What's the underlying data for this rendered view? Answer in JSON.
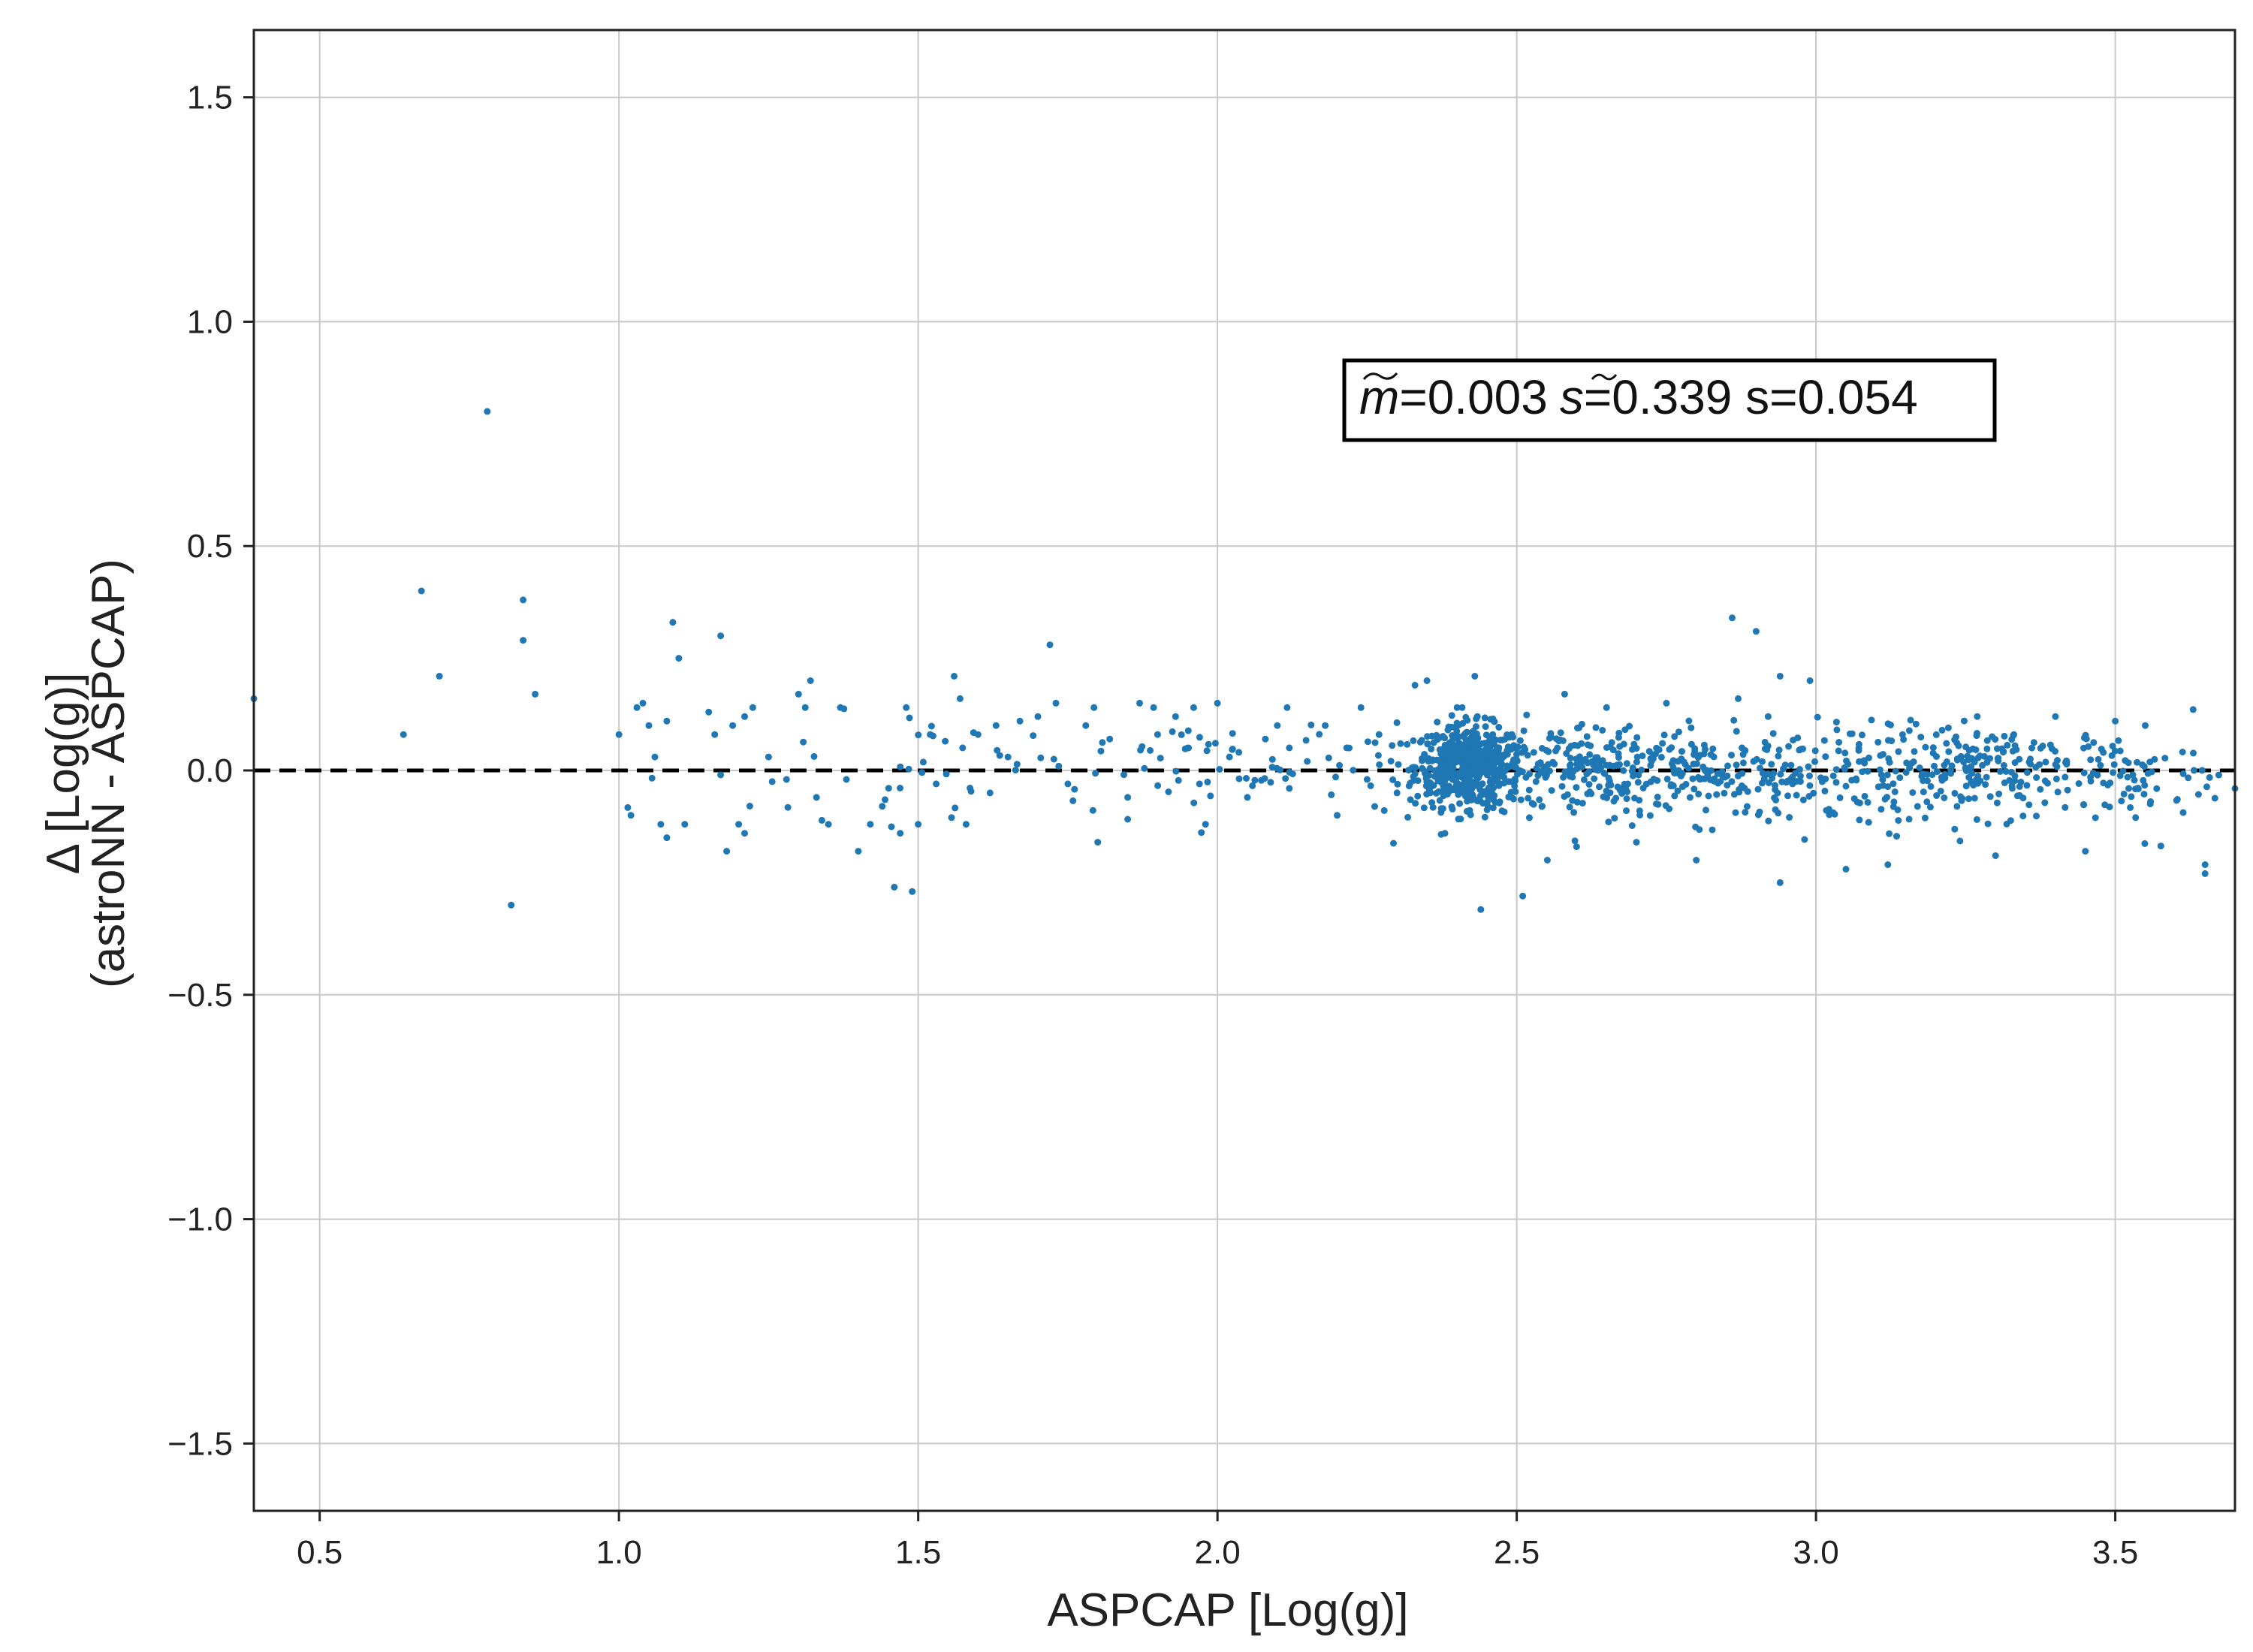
{
  "chart_data": {
    "type": "scatter",
    "xlabel": "ASPCAP [Log(g)]",
    "ylabel_line1": "Δ [Log(g)]",
    "ylabel_line2": "(astroNN - ASPCAP)",
    "xlim": [
      0.39,
      3.7
    ],
    "ylim": [
      -1.65,
      1.65
    ],
    "x_ticks": [
      0.5,
      1.0,
      1.5,
      2.0,
      2.5,
      3.0,
      3.5
    ],
    "x_tick_labels": [
      "0.5",
      "1.0",
      "1.5",
      "2.0",
      "2.5",
      "3.0",
      "3.5"
    ],
    "y_ticks": [
      1.5,
      1.0,
      0.5,
      0.0,
      -0.5,
      -1.0,
      -1.5
    ],
    "y_tick_labels": [
      "1.5",
      "1.0",
      "0.5",
      "0.0",
      "−0.5",
      "−1.0",
      "−1.5"
    ],
    "grid": true,
    "reference_line": {
      "y": 0.0,
      "style": "dashed",
      "color": "#000000"
    },
    "stats_box": {
      "m_symbol": "m",
      "m_value": "=0.003",
      "s_tilde_symbol": "s",
      "s_tilde_value": "=0.339",
      "s_text": " s=0.054"
    },
    "marker_color": "#1f77b4",
    "points": [
      [
        0.39,
        0.16
      ],
      [
        0.64,
        0.08
      ],
      [
        0.67,
        0.4
      ],
      [
        0.7,
        0.21
      ],
      [
        0.78,
        0.8
      ],
      [
        0.82,
        -0.3
      ],
      [
        0.84,
        0.38
      ],
      [
        0.84,
        0.29
      ],
      [
        0.86,
        0.17
      ],
      [
        1.0,
        0.08
      ],
      [
        1.02,
        -0.1
      ],
      [
        1.03,
        0.14
      ],
      [
        1.04,
        0.15
      ],
      [
        1.05,
        0.1
      ],
      [
        1.06,
        0.03
      ],
      [
        1.07,
        -0.12
      ],
      [
        1.08,
        0.11
      ],
      [
        1.08,
        -0.15
      ],
      [
        1.09,
        0.33
      ],
      [
        1.1,
        0.25
      ],
      [
        1.11,
        -0.12
      ],
      [
        1.15,
        0.13
      ],
      [
        1.16,
        0.08
      ],
      [
        1.17,
        0.3
      ],
      [
        1.17,
        -0.01
      ],
      [
        1.18,
        -0.18
      ],
      [
        1.19,
        0.1
      ],
      [
        1.2,
        -0.12
      ],
      [
        1.21,
        0.12
      ],
      [
        1.21,
        -0.14
      ],
      [
        1.25,
        0.03
      ],
      [
        1.28,
        -0.02
      ],
      [
        1.3,
        0.17
      ],
      [
        1.32,
        0.2
      ],
      [
        1.33,
        -0.06
      ],
      [
        1.35,
        -0.12
      ],
      [
        1.37,
        0.14
      ],
      [
        1.38,
        -0.02
      ],
      [
        1.4,
        -0.18
      ],
      [
        1.42,
        -0.12
      ],
      [
        1.44,
        -0.08
      ],
      [
        1.46,
        -0.26
      ],
      [
        1.47,
        -0.14
      ],
      [
        1.48,
        0.14
      ],
      [
        1.49,
        -0.27
      ],
      [
        1.5,
        -0.12
      ],
      [
        1.52,
        0.08
      ],
      [
        1.53,
        -0.03
      ],
      [
        1.56,
        0.21
      ],
      [
        1.57,
        0.16
      ],
      [
        1.58,
        -0.12
      ],
      [
        1.6,
        0.08
      ],
      [
        1.62,
        -0.05
      ],
      [
        1.63,
        0.1
      ],
      [
        1.65,
        0.03
      ],
      [
        1.67,
        0.11
      ],
      [
        1.7,
        0.12
      ],
      [
        1.72,
        0.28
      ],
      [
        1.73,
        0.15
      ],
      [
        1.75,
        -0.03
      ],
      [
        1.78,
        0.1
      ],
      [
        1.8,
        -0.16
      ],
      [
        1.82,
        0.07
      ],
      [
        1.85,
        -0.06
      ],
      [
        1.87,
        0.15
      ],
      [
        1.9,
        0.08
      ],
      [
        1.93,
        0.12
      ],
      [
        1.95,
        0.05
      ],
      [
        1.97,
        -0.03
      ],
      [
        1.98,
        -0.12
      ],
      [
        2.0,
        0.15
      ],
      [
        2.02,
        0.03
      ],
      [
        2.05,
        -0.06
      ],
      [
        2.08,
        0.07
      ],
      [
        2.1,
        0.1
      ],
      [
        2.12,
        -0.04
      ],
      [
        2.15,
        0.02
      ],
      [
        2.18,
        0.1
      ],
      [
        2.2,
        -0.1
      ],
      [
        2.22,
        0.05
      ],
      [
        2.25,
        -0.02
      ],
      [
        2.27,
        0.08
      ],
      [
        2.3,
        -0.05
      ],
      [
        2.33,
        0.19
      ],
      [
        2.35,
        0.2
      ],
      [
        2.38,
        -0.14
      ],
      [
        2.44,
        -0.31
      ],
      [
        2.43,
        0.21
      ],
      [
        2.51,
        -0.28
      ],
      [
        2.58,
        0.17
      ],
      [
        2.6,
        -0.17
      ],
      [
        2.65,
        0.14
      ],
      [
        2.7,
        -0.16
      ],
      [
        2.75,
        0.15
      ],
      [
        2.8,
        -0.2
      ],
      [
        2.86,
        0.34
      ],
      [
        2.87,
        0.16
      ],
      [
        2.9,
        0.31
      ],
      [
        2.92,
        0.12
      ],
      [
        2.94,
        0.21
      ],
      [
        2.99,
        0.2
      ],
      [
        2.94,
        -0.25
      ],
      [
        3.05,
        -0.22
      ],
      [
        3.12,
        -0.21
      ],
      [
        3.3,
        -0.19
      ],
      [
        3.45,
        -0.18
      ],
      [
        3.65,
        -0.23
      ],
      [
        3.65,
        -0.21
      ],
      [
        3.5,
        0.11
      ],
      [
        3.55,
        0.1
      ],
      [
        3.4,
        0.12
      ]
    ],
    "clusters": [
      {
        "cx": 2.42,
        "cy": 0.01,
        "sx": 0.045,
        "sy": 0.045,
        "n": 520
      },
      {
        "cx": 2.62,
        "cy": 0.0,
        "sx": 0.12,
        "sy": 0.055,
        "n": 230
      },
      {
        "cx": 2.9,
        "cy": -0.01,
        "sx": 0.16,
        "sy": 0.055,
        "n": 230
      },
      {
        "cx": 3.3,
        "cy": 0.0,
        "sx": 0.13,
        "sy": 0.05,
        "n": 230
      },
      {
        "cx": 3.55,
        "cy": -0.02,
        "sx": 0.07,
        "sy": 0.06,
        "n": 45
      },
      {
        "cx": 2.05,
        "cy": 0.0,
        "sx": 0.22,
        "sy": 0.065,
        "n": 80
      },
      {
        "cx": 1.55,
        "cy": 0.0,
        "sx": 0.22,
        "sy": 0.09,
        "n": 40
      }
    ]
  }
}
